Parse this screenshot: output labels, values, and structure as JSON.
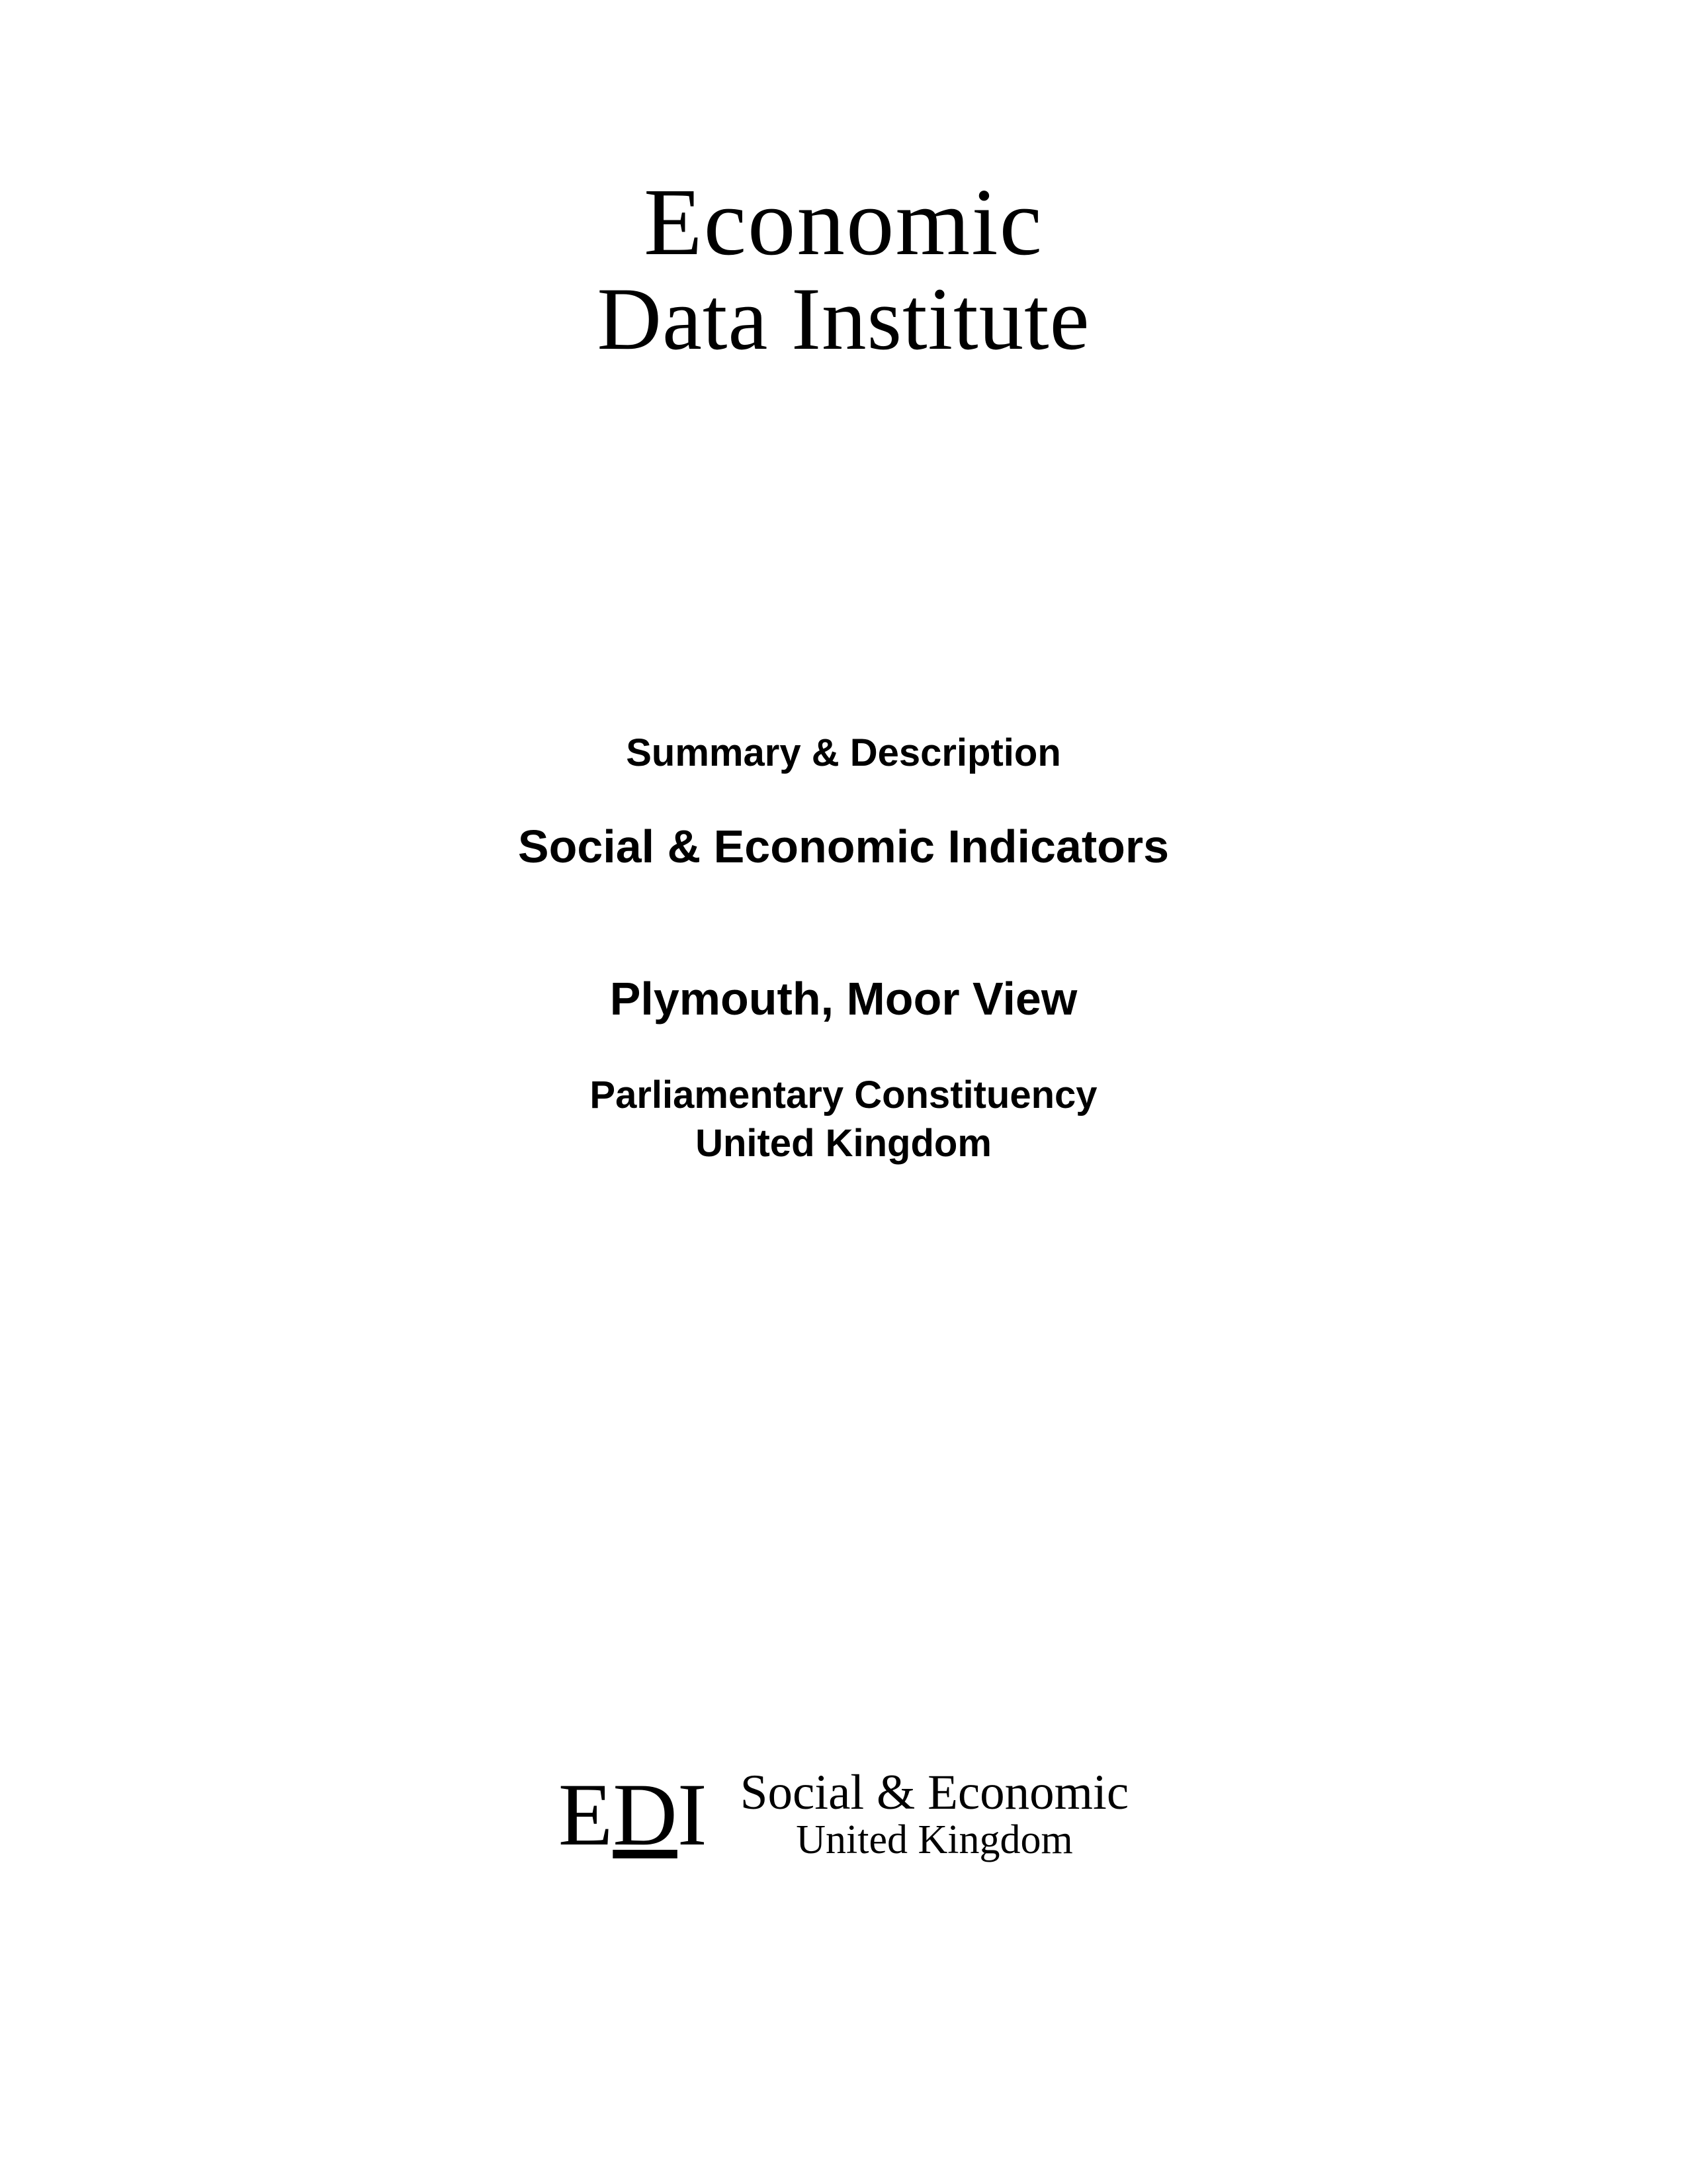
{
  "header": {
    "logo_line1": "Economic",
    "logo_line2": "Data Institute"
  },
  "content": {
    "subtitle1": "Summary & Description",
    "title": "Social & Economic Indicators",
    "location": "Plymouth, Moor View",
    "subtitle2_line1": "Parliamentary Constituency",
    "subtitle2_line2": "United Kingdom"
  },
  "footer": {
    "edi_e": "E",
    "edi_d": "D",
    "edi_i": "I",
    "text_line1": "Social & Economic",
    "text_line2": "United Kingdom"
  },
  "styling": {
    "background_color": "#ffffff",
    "text_color": "#000000",
    "header_font": "Georgia, Times New Roman, serif",
    "body_font": "Arial, Helvetica, sans-serif",
    "header_line1_fontsize": 145,
    "header_line2_fontsize": 135,
    "subtitle_fontsize": 58,
    "title_fontsize": 70,
    "footer_edi_fontsize": 135,
    "footer_text1_fontsize": 75,
    "footer_text2_fontsize": 62
  }
}
